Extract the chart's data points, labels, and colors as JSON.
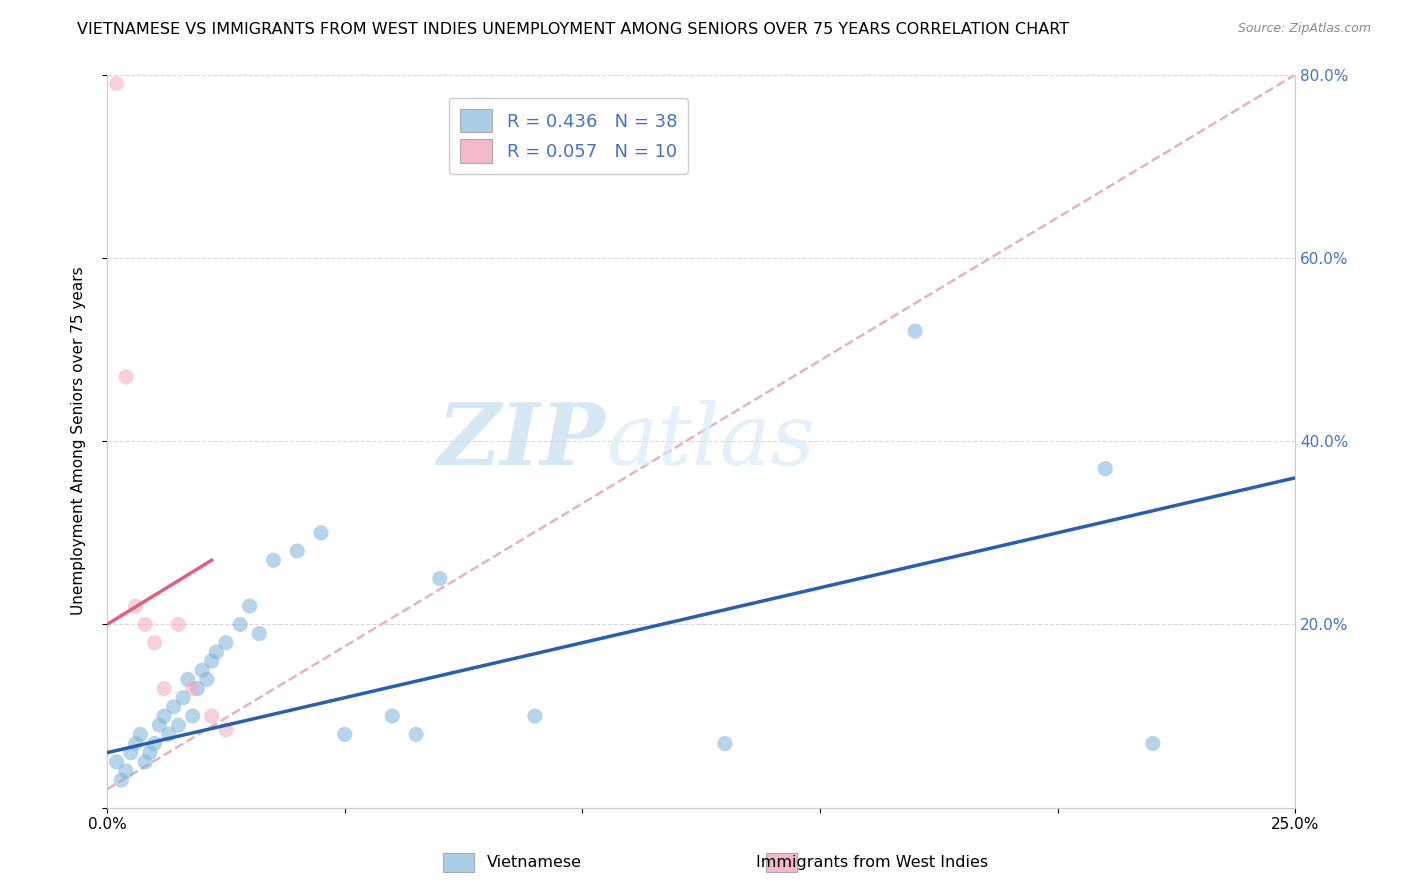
{
  "title": "VIETNAMESE VS IMMIGRANTS FROM WEST INDIES UNEMPLOYMENT AMONG SENIORS OVER 75 YEARS CORRELATION CHART",
  "source": "Source: ZipAtlas.com",
  "ylabel": "Unemployment Among Seniors over 75 years",
  "xlim": [
    0.0,
    0.25
  ],
  "ylim": [
    0.0,
    0.8
  ],
  "xticks": [
    0.0,
    0.05,
    0.1,
    0.15,
    0.2,
    0.25
  ],
  "yticks": [
    0.0,
    0.2,
    0.4,
    0.6,
    0.8
  ],
  "xtick_labels": [
    "0.0%",
    "",
    "",
    "",
    "",
    "25.0%"
  ],
  "ytick_labels": [
    "",
    "20.0%",
    "40.0%",
    "60.0%",
    "80.0%"
  ],
  "watermark_zip": "ZIP",
  "watermark_atlas": "atlas",
  "blue_scatter_x": [
    0.002,
    0.003,
    0.004,
    0.005,
    0.006,
    0.007,
    0.008,
    0.009,
    0.01,
    0.011,
    0.012,
    0.013,
    0.014,
    0.015,
    0.016,
    0.017,
    0.018,
    0.019,
    0.02,
    0.021,
    0.022,
    0.023,
    0.025,
    0.028,
    0.03,
    0.032,
    0.035,
    0.04,
    0.045,
    0.05,
    0.06,
    0.065,
    0.07,
    0.09,
    0.13,
    0.17,
    0.21,
    0.22
  ],
  "blue_scatter_y": [
    0.05,
    0.03,
    0.04,
    0.06,
    0.07,
    0.08,
    0.05,
    0.06,
    0.07,
    0.09,
    0.1,
    0.08,
    0.11,
    0.09,
    0.12,
    0.14,
    0.1,
    0.13,
    0.15,
    0.14,
    0.16,
    0.17,
    0.18,
    0.2,
    0.22,
    0.19,
    0.27,
    0.28,
    0.3,
    0.08,
    0.1,
    0.08,
    0.25,
    0.1,
    0.07,
    0.52,
    0.37,
    0.07
  ],
  "pink_scatter_x": [
    0.002,
    0.004,
    0.006,
    0.008,
    0.01,
    0.012,
    0.015,
    0.018,
    0.022,
    0.025
  ],
  "pink_scatter_y": [
    0.79,
    0.47,
    0.22,
    0.2,
    0.18,
    0.13,
    0.2,
    0.13,
    0.1,
    0.085
  ],
  "blue_line_x": [
    0.0,
    0.25
  ],
  "blue_line_y": [
    0.06,
    0.36
  ],
  "pink_line_x": [
    0.0,
    0.022
  ],
  "pink_line_y": [
    0.2,
    0.27
  ],
  "trend_line_x": [
    0.0,
    0.25
  ],
  "trend_line_y": [
    0.02,
    0.8
  ],
  "blue_dot_color": "#7bb3d9",
  "pink_dot_color": "#f4aabb",
  "blue_line_color": "#2a5fad",
  "pink_line_color": "#e06080",
  "trend_line_color": "#e8b0c0",
  "background_color": "#ffffff",
  "grid_color": "#d8d8d8",
  "title_fontsize": 11.5,
  "axis_label_fontsize": 11,
  "tick_fontsize": 11,
  "dot_size": 120,
  "dot_alpha": 0.55,
  "legend_r1": "R = 0.436",
  "legend_n1": "N = 38",
  "legend_r2": "R = 0.057",
  "legend_n2": "N = 10",
  "legend_color1": "#aacde8",
  "legend_color2": "#f4b8c8",
  "bottom_label1": "Vietnamese",
  "bottom_label2": "Immigrants from West Indies"
}
